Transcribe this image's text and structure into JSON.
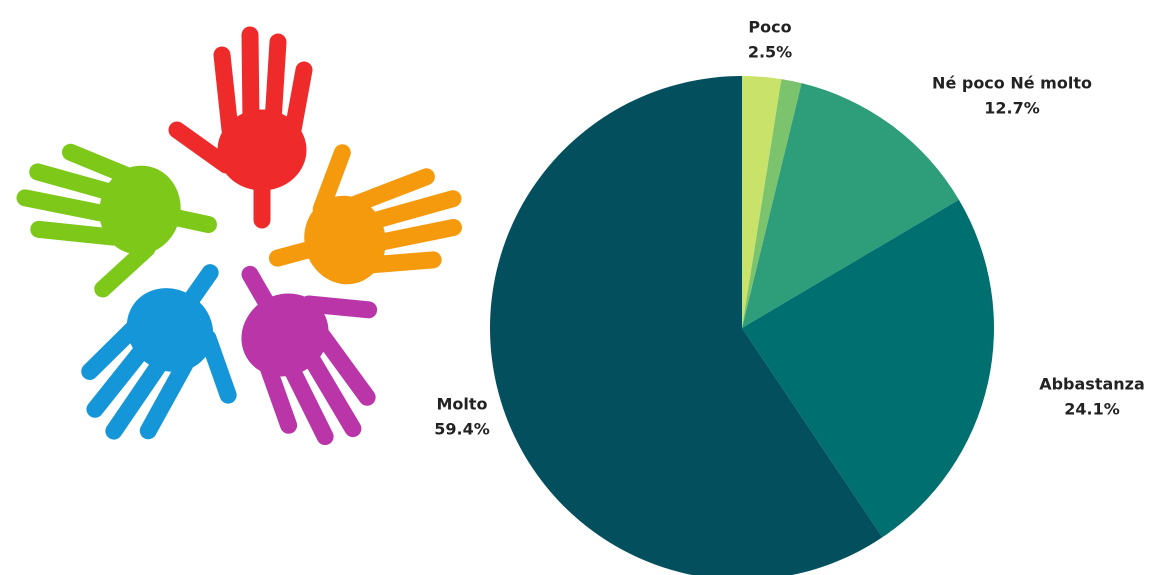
{
  "chart_data": {
    "type": "pie",
    "categories": [
      "Poco",
      null,
      "Né poco Né molto",
      "Abbastanza",
      "Molto"
    ],
    "values": [
      2.5,
      1.3,
      12.7,
      24.1,
      59.4
    ],
    "value_labels": [
      "2.5%",
      null,
      "12.7%",
      "24.1%",
      "59.4%"
    ],
    "colors": [
      "#c9e26a",
      "#7cc36e",
      "#2e9e7a",
      "#006f6f",
      "#034f5e"
    ]
  }
}
